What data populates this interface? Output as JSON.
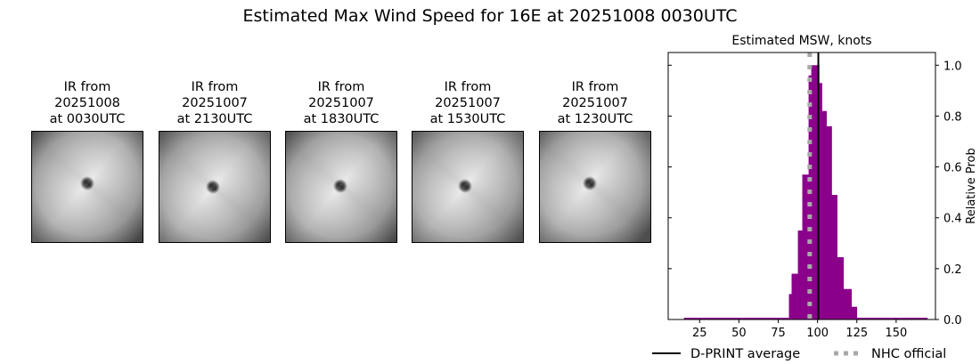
{
  "figure": {
    "title": "Estimated Max Wind Speed for 16E at 20251008 0030UTC"
  },
  "ir_images": [
    {
      "line1": "IR from",
      "line2": "20251008",
      "line3": "at 0030UTC",
      "eye_x": 62,
      "eye_y": 58,
      "shade": "#4a4a4a"
    },
    {
      "line1": "IR from",
      "line2": "20251007",
      "line3": "at 2130UTC",
      "eye_x": 60,
      "eye_y": 62,
      "shade": "#575757"
    },
    {
      "line1": "IR from",
      "line2": "20251007",
      "line3": "at 1830UTC",
      "eye_x": 61,
      "eye_y": 61,
      "shade": "#505050"
    },
    {
      "line1": "IR from",
      "line2": "20251007",
      "line3": "at 1530UTC",
      "eye_x": 59,
      "eye_y": 61,
      "shade": "#5a5a5a"
    },
    {
      "line1": "IR from",
      "line2": "20251007",
      "line3": "at 1230UTC",
      "eye_x": 56,
      "eye_y": 58,
      "shade": "#555555"
    }
  ],
  "chart_data": {
    "type": "bar",
    "title": "Estimated MSW, knots",
    "xlabel": "",
    "ylabel": "Relative Prob",
    "xlim": [
      5,
      175
    ],
    "ylim": [
      0,
      1.05
    ],
    "xticks": [
      25,
      50,
      75,
      100,
      125,
      150
    ],
    "yticks": [
      0.0,
      0.2,
      0.4,
      0.6,
      0.8,
      1.0
    ],
    "ytick_labels": [
      "0.0",
      "0.2",
      "0.4",
      "0.6",
      "0.8",
      "1.0"
    ],
    "y_axis_side": "right",
    "grid": false,
    "bar_color": "#8b008b",
    "baseline_range": [
      15,
      170
    ],
    "bars": [
      {
        "x0": 81.8,
        "x1": 83.5,
        "value": 0.1
      },
      {
        "x0": 83.5,
        "x1": 87.5,
        "value": 0.18
      },
      {
        "x0": 87.5,
        "x1": 90.3,
        "value": 0.35
      },
      {
        "x0": 90.3,
        "x1": 94.3,
        "value": 0.57
      },
      {
        "x0": 94.3,
        "x1": 96.0,
        "value": 0.96
      },
      {
        "x0": 96.0,
        "x1": 101.0,
        "value": 1.0
      },
      {
        "x0": 101.0,
        "x1": 102.8,
        "value": 0.93
      },
      {
        "x0": 102.8,
        "x1": 105.7,
        "value": 0.82
      },
      {
        "x0": 105.7,
        "x1": 109.0,
        "value": 0.76
      },
      {
        "x0": 109.0,
        "x1": 112.5,
        "value": 0.49
      },
      {
        "x0": 112.5,
        "x1": 116.5,
        "value": 0.245
      },
      {
        "x0": 116.5,
        "x1": 121.6,
        "value": 0.12
      },
      {
        "x0": 121.6,
        "x1": 125.0,
        "value": 0.05
      }
    ],
    "lines": [
      {
        "name": "D-PRINT average",
        "x": 100.5,
        "color": "#000000",
        "style": "solid"
      },
      {
        "name": "NHC official",
        "x": 95,
        "color": "#a9a9a9",
        "style": "dotted"
      }
    ],
    "legend": {
      "position": "bottom",
      "entries": [
        "D-PRINT average",
        "NHC official"
      ]
    }
  }
}
